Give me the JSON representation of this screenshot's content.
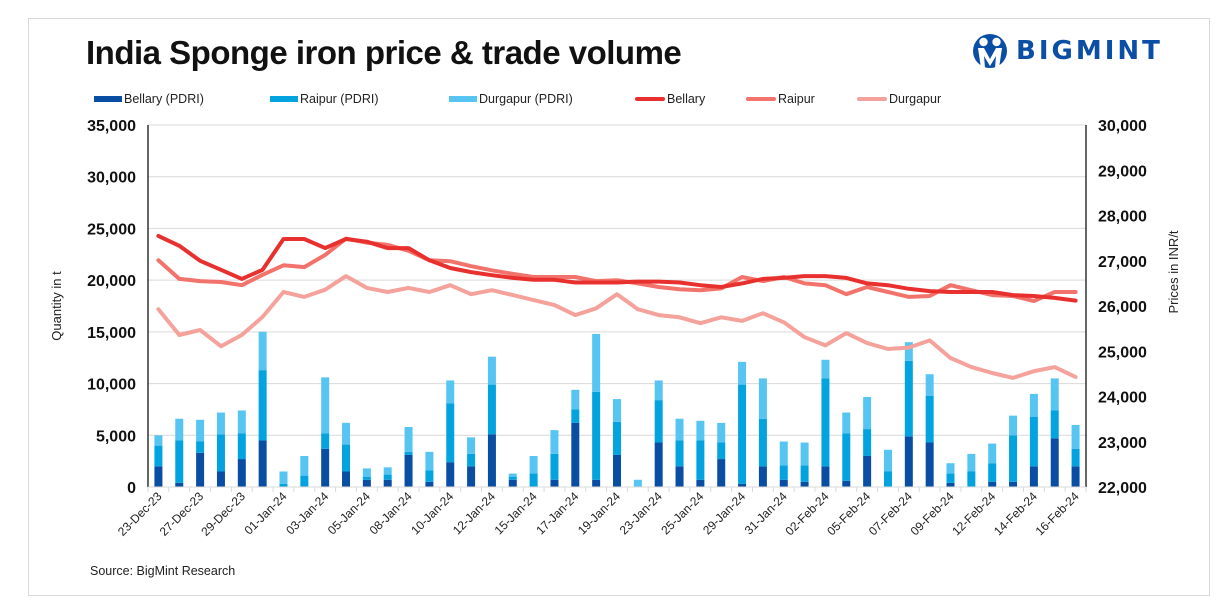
{
  "header": {
    "title": "India Sponge iron price & trade volume",
    "logo_text": "BIGMINT",
    "logo_color": "#0a4ea6"
  },
  "footer": {
    "source": "Source: BigMint Research"
  },
  "chart_data": {
    "type": "bar+line",
    "title": "India Sponge iron price & trade volume",
    "left_axis": {
      "label": "Quantity in t",
      "range": [
        0,
        35000
      ],
      "ticks": [
        "0",
        "5,000",
        "10,000",
        "15,000",
        "20,000",
        "25,000",
        "30,000",
        "35,000"
      ]
    },
    "right_axis": {
      "label": "Prices in INR/t",
      "range": [
        22000,
        30000
      ],
      "ticks": [
        "22,000",
        "23,000",
        "24,000",
        "25,000",
        "26,000",
        "27,000",
        "28,000",
        "29,000",
        "30,000"
      ]
    },
    "grid": true,
    "legend_position": "top",
    "x_tick_labels": [
      "23-Dec-23",
      "27-Dec-23",
      "29-Dec-23",
      "01-Jan-24",
      "03-Jan-24",
      "05-Jan-24",
      "08-Jan-24",
      "10-Jan-24",
      "12-Jan-24",
      "15-Jan-24",
      "17-Jan-24",
      "19-Jan-24",
      "23-Jan-24",
      "25-Jan-24",
      "29-Jan-24",
      "31-Jan-24",
      "02-Feb-24",
      "05-Feb-24",
      "07-Feb-24",
      "09-Feb-24",
      "12-Feb-24",
      "14-Feb-24",
      "16-Feb-24"
    ],
    "n_points": 45,
    "bar_series": [
      {
        "name": "Bellary (PDRI)",
        "color": "#0a4ea3",
        "stack": "volume",
        "values": [
          2000,
          400,
          3300,
          1500,
          2700,
          4500,
          0,
          0,
          3700,
          1500,
          700,
          700,
          3100,
          500,
          2400,
          2000,
          5100,
          700,
          0,
          700,
          6200,
          700,
          3100,
          0,
          4300,
          2000,
          700,
          2700,
          300,
          2000,
          700,
          500,
          2000,
          600,
          3000,
          0,
          4900,
          4300,
          400,
          0,
          500,
          500,
          2000,
          4700,
          2000
        ]
      },
      {
        "name": "Raipur (PDRI)",
        "color": "#03a3e0",
        "stack": "volume",
        "values": [
          2000,
          4100,
          1100,
          3600,
          2500,
          6800,
          300,
          1100,
          1500,
          2600,
          300,
          500,
          300,
          1100,
          5700,
          1200,
          4800,
          300,
          1300,
          2500,
          1300,
          8500,
          3200,
          0,
          4100,
          2500,
          3800,
          1600,
          9600,
          4600,
          1400,
          1600,
          8500,
          4600,
          2600,
          1500,
          7300,
          4500,
          900,
          1500,
          1800,
          4500,
          4800,
          2700,
          1700
        ]
      },
      {
        "name": "Durgapur (PDRI)",
        "color": "#56c5f2",
        "stack": "volume",
        "values": [
          1000,
          2100,
          2100,
          2100,
          2200,
          3700,
          1200,
          1900,
          5400,
          2100,
          800,
          700,
          2400,
          1800,
          2200,
          1600,
          2700,
          300,
          1700,
          2300,
          1900,
          5600,
          2200,
          700,
          1900,
          2100,
          1900,
          1900,
          2200,
          3900,
          2300,
          2200,
          1800,
          2000,
          3100,
          2100,
          1800,
          2100,
          1000,
          1700,
          1900,
          1900,
          2200,
          3100,
          2300
        ]
      }
    ],
    "line_series": [
      {
        "name": "Bellary",
        "color": "#e8312f",
        "axis": "right",
        "values": [
          27550,
          27330,
          27000,
          26800,
          26600,
          26800,
          27480,
          27480,
          27280,
          27480,
          27420,
          27280,
          27280,
          27010,
          26840,
          26750,
          26680,
          26620,
          26580,
          26580,
          26520,
          26520,
          26520,
          26540,
          26540,
          26520,
          26460,
          26420,
          26500,
          26600,
          26620,
          26660,
          26660,
          26620,
          26500,
          26460,
          26380,
          26330,
          26310,
          26310,
          26310,
          26240,
          26220,
          26180,
          26120
        ]
      },
      {
        "name": "Raipur",
        "color": "#f2736b",
        "axis": "right",
        "values": [
          27010,
          26600,
          26550,
          26530,
          26460,
          26690,
          26900,
          26860,
          27130,
          27490,
          27400,
          27350,
          27220,
          27010,
          26990,
          26880,
          26790,
          26710,
          26640,
          26640,
          26640,
          26550,
          26570,
          26500,
          26420,
          26370,
          26350,
          26390,
          26640,
          26550,
          26640,
          26500,
          26460,
          26260,
          26420,
          26310,
          26200,
          26220,
          26460,
          26350,
          26240,
          26220,
          26110,
          26310,
          26310
        ]
      },
      {
        "name": "Durgapur",
        "color": "#f4a29b",
        "axis": "right",
        "values": [
          25930,
          25360,
          25470,
          25110,
          25360,
          25760,
          26310,
          26200,
          26360,
          26660,
          26400,
          26310,
          26400,
          26310,
          26460,
          26260,
          26350,
          26240,
          26130,
          26020,
          25800,
          25950,
          26260,
          25930,
          25800,
          25750,
          25620,
          25750,
          25670,
          25840,
          25640,
          25310,
          25130,
          25400,
          25180,
          25050,
          25080,
          25240,
          24850,
          24650,
          24520,
          24410,
          24560,
          24650,
          24430
        ]
      }
    ]
  }
}
